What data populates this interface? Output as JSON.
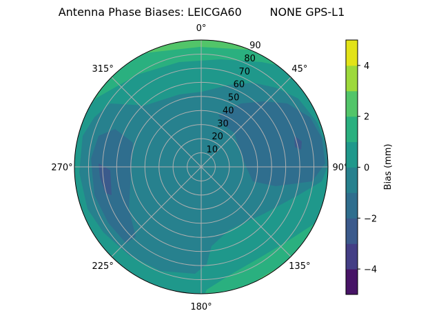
{
  "chart_data": {
    "type": "polar contour",
    "title": "Antenna Phase Biases: LEICGA60        NONE GPS-L1",
    "angular_ticks": [
      "0°",
      "45°",
      "90°",
      "135°",
      "180°",
      "225°",
      "270°",
      "315°"
    ],
    "radial_ticks": [
      "10",
      "20",
      "30",
      "40",
      "50",
      "60",
      "70",
      "80",
      "90"
    ],
    "radial_range": [
      0,
      90
    ],
    "grid": true,
    "colorbar": {
      "label": "Bias (mm)",
      "levels": [
        -5,
        -4,
        -3,
        -2,
        -1,
        0,
        1,
        2,
        3,
        4,
        5
      ],
      "tick_values": [
        -4,
        -2,
        0,
        2,
        4
      ],
      "tick_labels": [
        "−4",
        "−2",
        "0",
        "2",
        "4"
      ],
      "colormap": "viridis",
      "colors": [
        "#471466",
        "#433e85",
        "#3b5a8c",
        "#2f6e8e",
        "#27818e",
        "#1f988b",
        "#2ab07f",
        "#52c569",
        "#9dd93b",
        "#e2e318"
      ]
    },
    "regions": [
      {
        "range": [
          0,
          1
        ],
        "description": "outer ring"
      },
      {
        "range": [
          -1,
          0
        ],
        "description": "central area"
      },
      {
        "range": [
          -2,
          -1
        ],
        "location": "around 270° and 45°–90°"
      },
      {
        "range": [
          -3,
          -2
        ],
        "location": "small spots near 270° and 70°"
      },
      {
        "range": [
          1,
          4
        ],
        "location": "edge near 0° and near 135°–160°"
      }
    ]
  }
}
